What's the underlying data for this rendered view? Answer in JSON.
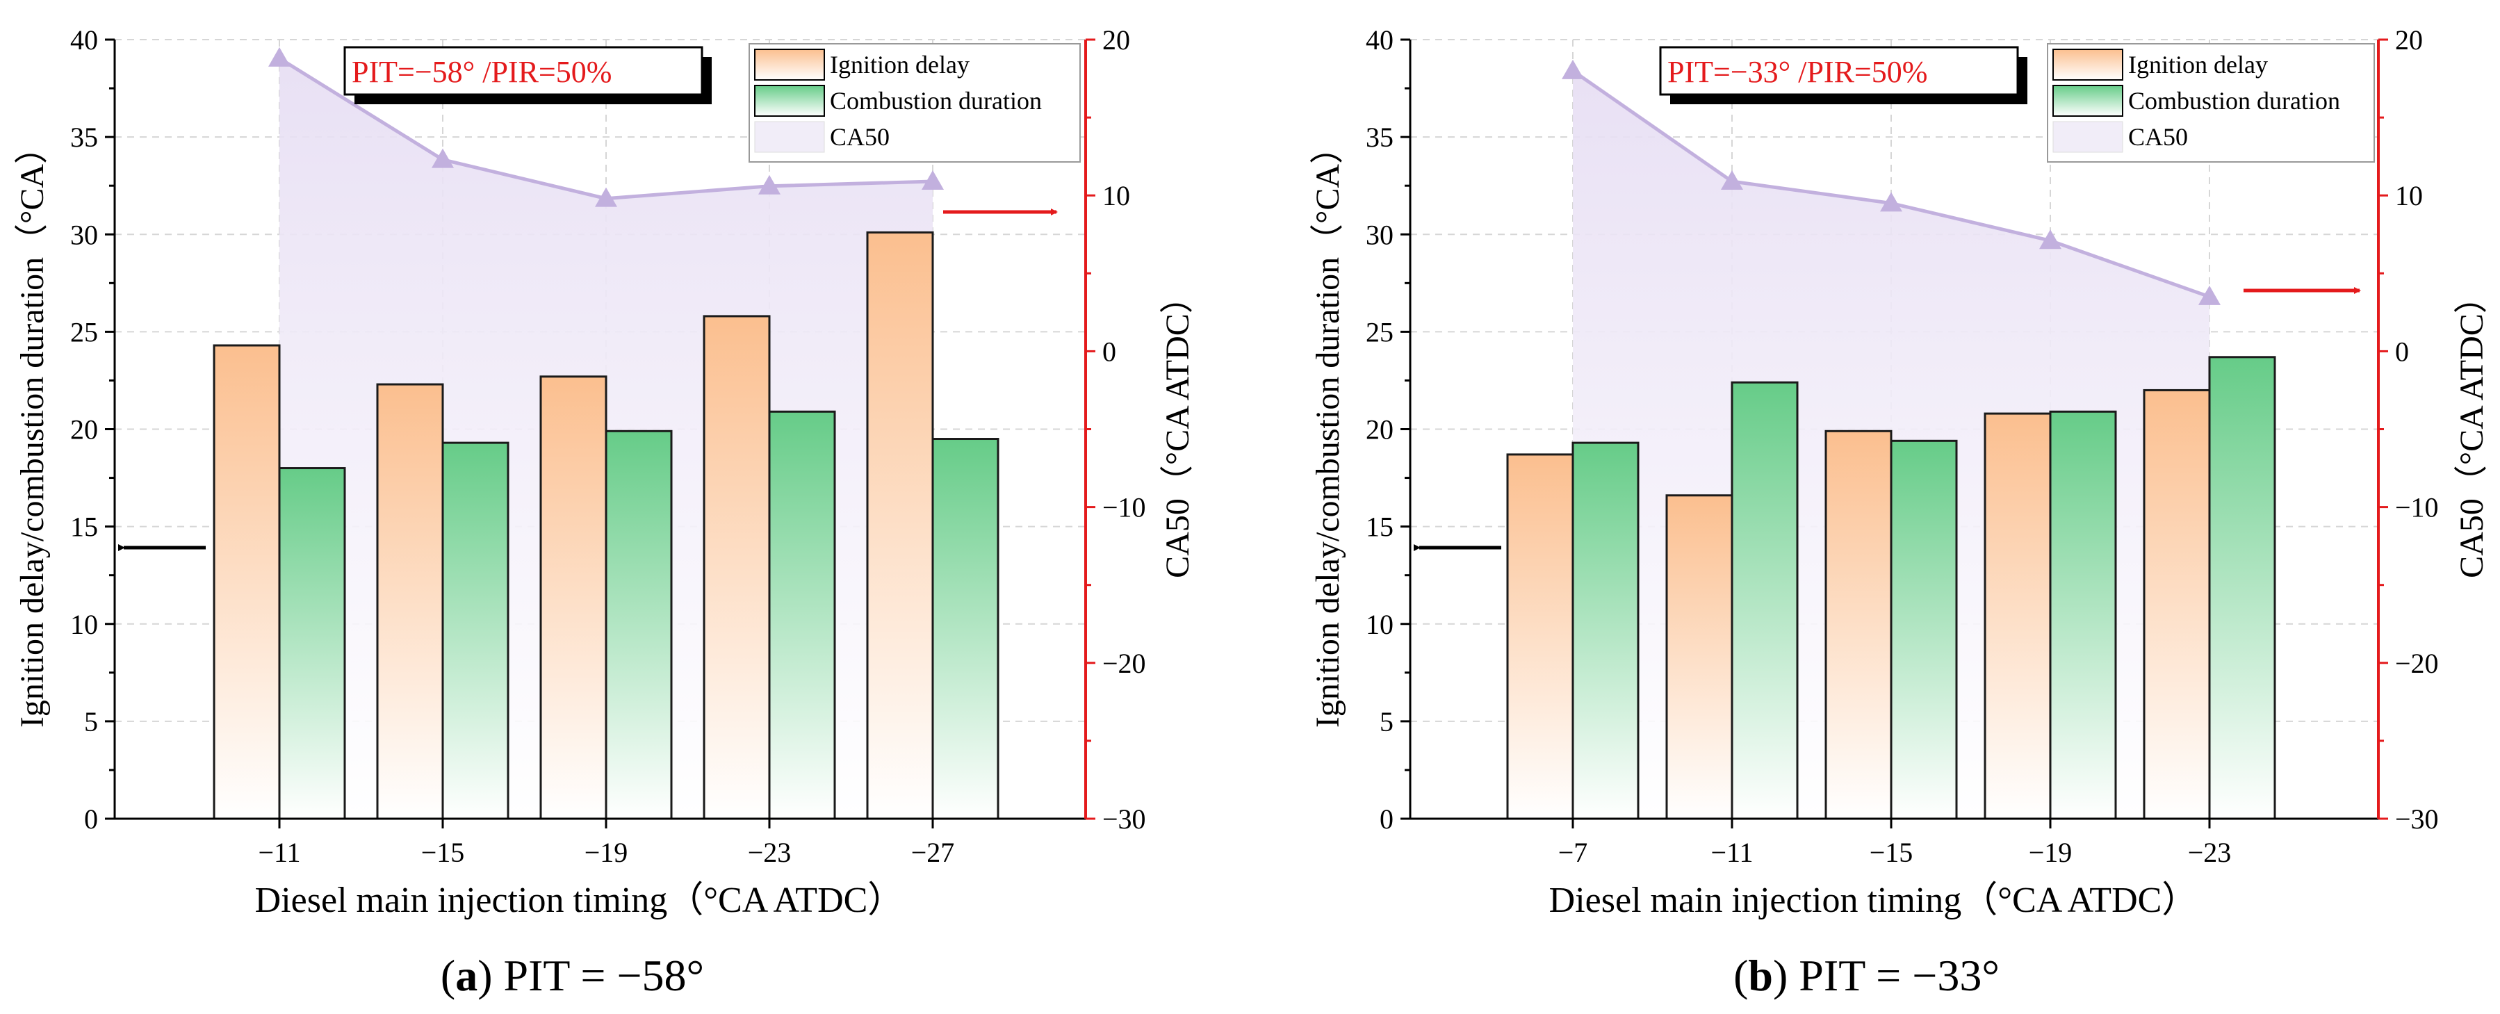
{
  "colors": {
    "ignition_top": "#fbbf8f",
    "ignition_bottom": "#ffffff",
    "combustion_top": "#66cc88",
    "combustion_bottom": "#ffffff",
    "ca50_line": "#c2b0de",
    "ca50_fill": "#efe9f7",
    "right_axis": "#e41a1c",
    "annotation": "#e41a1c"
  },
  "chart_data": [
    {
      "type": "bar",
      "panel_label": "a",
      "caption": "PIT = −58°",
      "annotation": "PIT=−58° /PIR=50%",
      "xlabel": "Diesel main injection timing（°CA ATDC）",
      "ylabel": "Ignition delay/combustion duration（°CA）",
      "y2label": "CA50（°CA ATDC）",
      "categories": [
        "−11",
        "−15",
        "−19",
        "−23",
        "−27"
      ],
      "ylim": [
        0,
        40
      ],
      "y2lim": [
        -30,
        20
      ],
      "yticks": [
        "0",
        "5",
        "10",
        "15",
        "20",
        "25",
        "30",
        "35",
        "40"
      ],
      "y2ticks": [
        "−30",
        "−20",
        "−10",
        "0",
        "10",
        "20"
      ],
      "series": [
        {
          "name": "Ignition delay",
          "axis": "left",
          "kind": "bar",
          "values": [
            24.3,
            22.3,
            22.7,
            25.8,
            30.1
          ]
        },
        {
          "name": "Combustion duration",
          "axis": "left",
          "kind": "bar",
          "values": [
            18.0,
            19.3,
            19.9,
            20.9,
            19.5
          ]
        },
        {
          "name": "CA50",
          "axis": "right",
          "kind": "area-line",
          "values": [
            18.8,
            12.3,
            9.8,
            10.6,
            10.9
          ]
        }
      ],
      "legend": [
        "Ignition delay",
        "Combustion duration",
        "CA50"
      ],
      "legend_position": "top-right"
    },
    {
      "type": "bar",
      "panel_label": "b",
      "caption": "PIT = −33°",
      "annotation": "PIT=−33° /PIR=50%",
      "xlabel": "Diesel main injection timing（°CA ATDC）",
      "ylabel": "Ignition delay/combustion duration（°CA）",
      "y2label": "CA50（°CA ATDC）",
      "categories": [
        "−7",
        "−11",
        "−15",
        "−19",
        "−23"
      ],
      "ylim": [
        0,
        40
      ],
      "y2lim": [
        -30,
        20
      ],
      "yticks": [
        "0",
        "5",
        "10",
        "15",
        "20",
        "25",
        "30",
        "35",
        "40"
      ],
      "y2ticks": [
        "−30",
        "−20",
        "−10",
        "0",
        "10",
        "20"
      ],
      "series": [
        {
          "name": "Ignition delay",
          "axis": "left",
          "kind": "bar",
          "values": [
            18.7,
            16.6,
            19.9,
            20.8,
            22.0
          ]
        },
        {
          "name": "Combustion duration",
          "axis": "left",
          "kind": "bar",
          "values": [
            19.3,
            22.4,
            19.4,
            20.9,
            23.7
          ]
        },
        {
          "name": "CA50",
          "axis": "right",
          "kind": "area-line",
          "values": [
            18.0,
            10.9,
            9.5,
            7.1,
            3.5
          ]
        }
      ],
      "legend": [
        "Ignition delay",
        "Combustion duration",
        "CA50"
      ],
      "legend_position": "top-right"
    }
  ]
}
